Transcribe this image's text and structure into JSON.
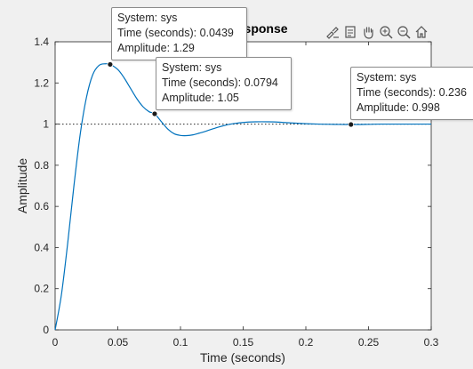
{
  "chart_data": {
    "type": "line",
    "title": "Step Response",
    "xlabel": "Time (seconds)",
    "ylabel": "Amplitude",
    "xlim": [
      0,
      0.3
    ],
    "ylim": [
      0,
      1.4
    ],
    "xticks": [
      0,
      0.05,
      0.1,
      0.15,
      0.2,
      0.25,
      0.3
    ],
    "xtick_labels": [
      "0",
      "0.05",
      "0.1",
      "0.15",
      "0.2",
      "0.25",
      "0.3"
    ],
    "yticks": [
      0,
      0.2,
      0.4,
      0.6,
      0.8,
      1,
      1.2,
      1.4
    ],
    "ytick_labels": [
      "0",
      "0.2",
      "0.4",
      "0.6",
      "0.8",
      "1",
      "1.2",
      "1.4"
    ],
    "grid": false,
    "steady_state_line": 1,
    "series": [
      {
        "color": "#0072bd",
        "x": [
          0,
          0.005,
          0.01,
          0.015,
          0.02,
          0.025,
          0.03,
          0.035,
          0.04,
          0.0439,
          0.05,
          0.055,
          0.06,
          0.065,
          0.07,
          0.075,
          0.0794,
          0.085,
          0.09,
          0.095,
          0.1,
          0.105,
          0.11,
          0.115,
          0.12,
          0.13,
          0.14,
          0.15,
          0.16,
          0.17,
          0.18,
          0.19,
          0.2,
          0.21,
          0.22,
          0.236,
          0.25,
          0.26,
          0.28,
          0.3
        ],
        "y": [
          0,
          0.17,
          0.42,
          0.7,
          0.95,
          1.13,
          1.24,
          1.285,
          1.293,
          1.29,
          1.265,
          1.225,
          1.175,
          1.125,
          1.085,
          1.06,
          1.05,
          1.01,
          0.975,
          0.953,
          0.945,
          0.944,
          0.948,
          0.956,
          0.965,
          0.985,
          1.0,
          1.008,
          1.011,
          1.011,
          1.009,
          1.005,
          1.002,
          1.0,
          0.999,
          0.998,
          0.999,
          1.0,
          1.0,
          1.0
        ]
      }
    ],
    "datatips": [
      {
        "system_line": "System: sys",
        "time_line": "Time (seconds): 0.0439",
        "amp_line": "Amplitude: 1.29",
        "x": 0.0439,
        "y": 1.29
      },
      {
        "system_line": "System: sys",
        "time_line": "Time (seconds): 0.0794",
        "amp_line": "Amplitude: 1.05",
        "x": 0.0794,
        "y": 1.05
      },
      {
        "system_line": "System: sys",
        "time_line": "Time (seconds): 0.236",
        "amp_line": "Amplitude: 0.998",
        "x": 0.236,
        "y": 0.998
      }
    ]
  },
  "toolbar": {
    "icons": [
      "brush-icon",
      "datatip-icon",
      "pan-hand-icon",
      "zoom-in-icon",
      "zoom-out-icon",
      "home-icon"
    ]
  }
}
